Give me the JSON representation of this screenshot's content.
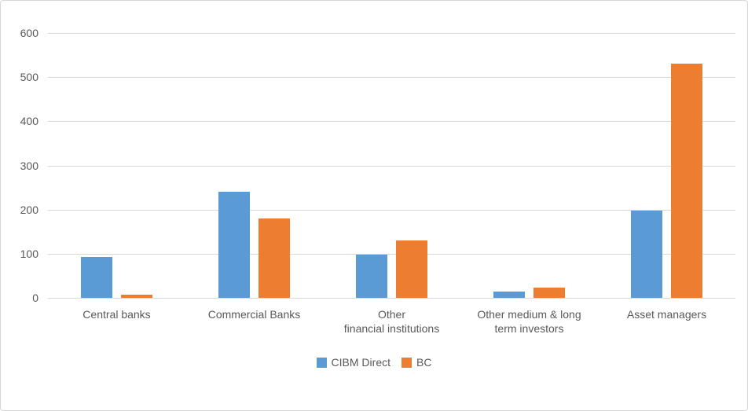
{
  "chart_data": {
    "type": "bar",
    "title": "",
    "categories": [
      "Central banks",
      "Commercial Banks",
      "Other\nfinancial institutions",
      "Other medium & long\nterm investors",
      "Asset managers"
    ],
    "series": [
      {
        "name": "CIBM Direct",
        "color": "#5B9BD5",
        "values": [
          93,
          240,
          98,
          15,
          197
        ]
      },
      {
        "name": "BC",
        "color": "#ED7D31",
        "values": [
          7,
          180,
          130,
          23,
          530
        ]
      }
    ],
    "ylim": [
      0,
      600
    ],
    "yticks": [
      0,
      100,
      200,
      300,
      400,
      500,
      600
    ],
    "grid": true,
    "legend_position": "bottom"
  },
  "style": {
    "text_color": "#595959",
    "gridline_color": "#D9D9D9",
    "border_color": "#D7D7D7",
    "series_colors": {
      "cibm_direct": "#5B9BD5",
      "bc": "#ED7D31"
    },
    "background": "#FFFFFF"
  }
}
